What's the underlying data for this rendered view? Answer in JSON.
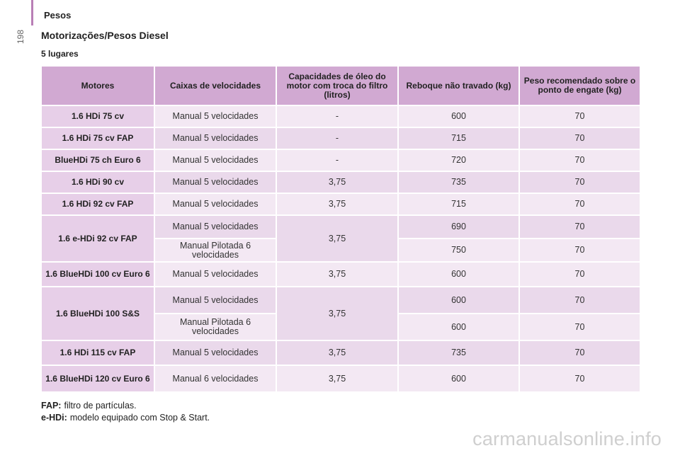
{
  "header": {
    "section": "Pesos",
    "page_number": "198"
  },
  "title": "Motorizações/Pesos Diesel",
  "subtitle": "5 lugares",
  "table": {
    "columns": [
      "Motores",
      "Caixas de velocidades",
      "Capacidades de óleo do motor com troca do filtro (litros)",
      "Reboque não travado (kg)",
      "Peso recomendado sobre o ponto de engate (kg)"
    ],
    "rows": [
      {
        "motor": "1.6 HDi 75 cv",
        "variants": [
          {
            "gearbox": "Manual 5 velocidades",
            "trailer": "600",
            "hitch": "70"
          }
        ],
        "oil": "-"
      },
      {
        "motor": "1.6 HDi 75 cv FAP",
        "variants": [
          {
            "gearbox": "Manual 5 velocidades",
            "trailer": "715",
            "hitch": "70"
          }
        ],
        "oil": "-"
      },
      {
        "motor": "BlueHDi 75 ch Euro 6",
        "variants": [
          {
            "gearbox": "Manual 5 velocidades",
            "trailer": "720",
            "hitch": "70"
          }
        ],
        "oil": "-"
      },
      {
        "motor": "1.6 HDi 90 cv",
        "variants": [
          {
            "gearbox": "Manual 5 velocidades",
            "trailer": "735",
            "hitch": "70"
          }
        ],
        "oil": "3,75"
      },
      {
        "motor": "1.6 HDi 92 cv FAP",
        "variants": [
          {
            "gearbox": "Manual 5 velocidades",
            "trailer": "715",
            "hitch": "70"
          }
        ],
        "oil": "3,75"
      },
      {
        "motor": "1.6 e-HDi 92 cv FAP",
        "variants": [
          {
            "gearbox": "Manual 5 velocidades",
            "trailer": "690",
            "hitch": "70"
          },
          {
            "gearbox": "Manual Pilotada 6 velocidades",
            "trailer": "750",
            "hitch": "70"
          }
        ],
        "oil": "3,75"
      },
      {
        "motor": "1.6 BlueHDi 100 cv Euro 6",
        "variants": [
          {
            "gearbox": "Manual 5 velocidades",
            "trailer": "600",
            "hitch": "70"
          }
        ],
        "oil": "3,75"
      },
      {
        "motor": "1.6 BlueHDi 100 S&S",
        "variants": [
          {
            "gearbox": "Manual 5 velocidades",
            "trailer": "600",
            "hitch": "70"
          },
          {
            "gearbox": "Manual Pilotada 6 velocidades",
            "trailer": "600",
            "hitch": "70"
          }
        ],
        "oil": "3,75"
      },
      {
        "motor": "1.6 HDi 115 cv FAP",
        "variants": [
          {
            "gearbox": "Manual 5 velocidades",
            "trailer": "735",
            "hitch": "70"
          }
        ],
        "oil": "3,75"
      },
      {
        "motor": "1.6 BlueHDi 120 cv Euro 6",
        "variants": [
          {
            "gearbox": "Manual 6 velocidades",
            "trailer": "600",
            "hitch": "70"
          }
        ],
        "oil": "3,75"
      }
    ]
  },
  "footnotes": [
    {
      "term": "FAP:",
      "text": "filtro de partículas."
    },
    {
      "term": "e-HDi:",
      "text": "modelo equipado com Stop & Start."
    }
  ],
  "watermark": "carmanualsonline.info",
  "colors": {
    "header_bg": "#d1a9d2",
    "motor_bg": "#e7cfe8",
    "row_light": "#f3e8f3",
    "row_dark": "#ead9eb",
    "accent_rule": "#b97fb6"
  }
}
